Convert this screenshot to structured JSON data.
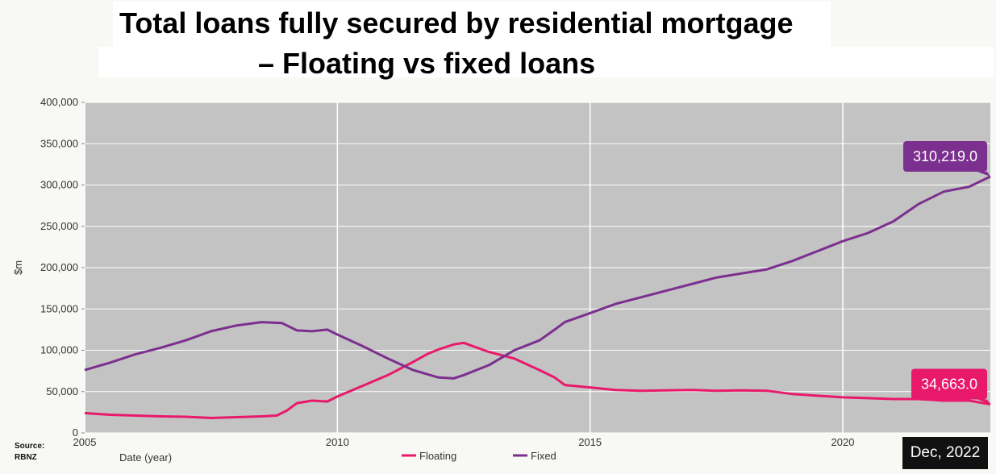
{
  "title": {
    "line1": "Total loans fully secured by residential mortgage",
    "line2": "– Floating vs fixed loans"
  },
  "source": {
    "label": "Source:",
    "value": "RBNZ"
  },
  "date_badge": "Dec, 2022",
  "colors": {
    "floating": "#e8196b",
    "fixed": "#7b2f8e",
    "plot_bg": "#c3c3c3",
    "grid": "#ffffff"
  },
  "chart_data": {
    "type": "line",
    "title": "Total loans fully secured by residential mortgage – Floating vs fixed loans",
    "xlabel": "Date (year)",
    "ylabel": "$m",
    "xlim": [
      2005.0,
      2022.92
    ],
    "ylim": [
      0,
      400000
    ],
    "x_ticks": [
      2005,
      2010,
      2015,
      2020
    ],
    "y_ticks": [
      0,
      50000,
      100000,
      150000,
      200000,
      250000,
      300000,
      350000,
      400000
    ],
    "y_tick_labels": [
      "0",
      "50,000",
      "100,000",
      "150,000",
      "200,000",
      "250,000",
      "300,000",
      "350,000",
      "400,000"
    ],
    "grid": true,
    "legend": "bottom-center",
    "series": [
      {
        "name": "Floating",
        "color": "#e8196b",
        "x": [
          2005.0,
          2005.5,
          2006.0,
          2006.5,
          2007.0,
          2007.5,
          2008.0,
          2008.5,
          2008.8,
          2009.0,
          2009.2,
          2009.5,
          2009.8,
          2010.0,
          2010.5,
          2011.0,
          2011.5,
          2011.8,
          2012.0,
          2012.3,
          2012.5,
          2013.0,
          2013.5,
          2014.0,
          2014.3,
          2014.5,
          2015.0,
          2015.5,
          2016.0,
          2016.5,
          2017.0,
          2017.5,
          2018.0,
          2018.5,
          2019.0,
          2019.5,
          2020.0,
          2020.5,
          2021.0,
          2021.5,
          2022.0,
          2022.5,
          2022.92
        ],
        "values": [
          24000,
          22000,
          21000,
          20000,
          19500,
          18000,
          19000,
          20000,
          21000,
          27000,
          36000,
          39000,
          38000,
          44000,
          57000,
          70000,
          86000,
          96000,
          101000,
          107000,
          109000,
          98000,
          90000,
          76000,
          67000,
          58000,
          55000,
          52000,
          51000,
          51500,
          52000,
          51000,
          51500,
          51000,
          47000,
          45000,
          43000,
          42000,
          41000,
          41000,
          39000,
          39000,
          34663
        ]
      },
      {
        "name": "Fixed",
        "color": "#7b2f8e",
        "x": [
          2005.0,
          2005.5,
          2006.0,
          2006.5,
          2007.0,
          2007.5,
          2008.0,
          2008.5,
          2008.9,
          2009.2,
          2009.5,
          2009.8,
          2010.0,
          2010.5,
          2011.0,
          2011.5,
          2012.0,
          2012.3,
          2012.5,
          2013.0,
          2013.5,
          2014.0,
          2014.3,
          2014.5,
          2015.0,
          2015.5,
          2016.0,
          2016.5,
          2017.0,
          2017.5,
          2018.0,
          2018.5,
          2019.0,
          2019.5,
          2020.0,
          2020.5,
          2021.0,
          2021.5,
          2022.0,
          2022.5,
          2022.92
        ],
        "values": [
          76000,
          85000,
          95000,
          103000,
          112000,
          123000,
          130000,
          134000,
          133000,
          124000,
          123000,
          125000,
          119000,
          105000,
          90000,
          76000,
          67000,
          66000,
          70000,
          82000,
          100000,
          112000,
          125000,
          134000,
          145000,
          156000,
          164000,
          172000,
          180000,
          188000,
          193000,
          198000,
          208000,
          220000,
          232000,
          242000,
          256000,
          277000,
          292000,
          298000,
          310219
        ]
      }
    ],
    "callouts": [
      {
        "series": "Fixed",
        "label": "310,219.0"
      },
      {
        "series": "Floating",
        "label": "34,663.0"
      }
    ]
  }
}
